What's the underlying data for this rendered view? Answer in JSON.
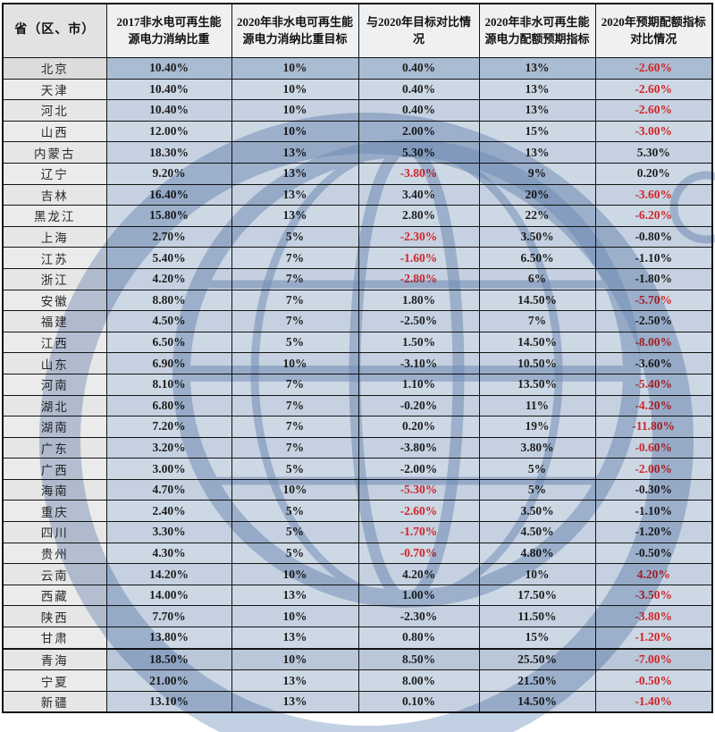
{
  "table": {
    "headers": [
      "省（区、市）",
      "2017非水电可再生能源电力消纳比重",
      "2020年非水电可再生能源电力消纳比重目标",
      "与2020年目标对比情况",
      "2020年非水可再生能源电力配额预期指标",
      "2020年预期配额指标对比情况"
    ],
    "rows": [
      {
        "name": "北京",
        "v2017": "10.40%",
        "target": "10%",
        "diff": "0.40%",
        "diff_red": false,
        "quota": "13%",
        "qdiff": "-2.60%",
        "qdiff_red": true
      },
      {
        "name": "天津",
        "v2017": "10.40%",
        "target": "10%",
        "diff": "0.40%",
        "diff_red": false,
        "quota": "13%",
        "qdiff": "-2.60%",
        "qdiff_red": true
      },
      {
        "name": "河北",
        "v2017": "10.40%",
        "target": "10%",
        "diff": "0.40%",
        "diff_red": false,
        "quota": "13%",
        "qdiff": "-2.60%",
        "qdiff_red": true
      },
      {
        "name": "山西",
        "v2017": "12.00%",
        "target": "10%",
        "diff": "2.00%",
        "diff_red": false,
        "quota": "15%",
        "qdiff": "-3.00%",
        "qdiff_red": true
      },
      {
        "name": "内蒙古",
        "v2017": "18.30%",
        "target": "13%",
        "diff": "5.30%",
        "diff_red": false,
        "quota": "13%",
        "qdiff": "5.30%",
        "qdiff_red": false
      },
      {
        "name": "辽宁",
        "v2017": "9.20%",
        "target": "13%",
        "diff": "-3.80%",
        "diff_red": true,
        "quota": "9%",
        "qdiff": "0.20%",
        "qdiff_red": false
      },
      {
        "name": "吉林",
        "v2017": "16.40%",
        "target": "13%",
        "diff": "3.40%",
        "diff_red": false,
        "quota": "20%",
        "qdiff": "-3.60%",
        "qdiff_red": true
      },
      {
        "name": "黑龙江",
        "v2017": "15.80%",
        "target": "13%",
        "diff": "2.80%",
        "diff_red": false,
        "quota": "22%",
        "qdiff": "-6.20%",
        "qdiff_red": true
      },
      {
        "name": "上海",
        "v2017": "2.70%",
        "target": "5%",
        "diff": "-2.30%",
        "diff_red": true,
        "quota": "3.50%",
        "qdiff": "-0.80%",
        "qdiff_red": false
      },
      {
        "name": "江苏",
        "v2017": "5.40%",
        "target": "7%",
        "diff": "-1.60%",
        "diff_red": true,
        "quota": "6.50%",
        "qdiff": "-1.10%",
        "qdiff_red": false
      },
      {
        "name": "浙江",
        "v2017": "4.20%",
        "target": "7%",
        "diff": "-2.80%",
        "diff_red": true,
        "quota": "6%",
        "qdiff": "-1.80%",
        "qdiff_red": false
      },
      {
        "name": "安徽",
        "v2017": "8.80%",
        "target": "7%",
        "diff": "1.80%",
        "diff_red": false,
        "quota": "14.50%",
        "qdiff": "-5.70%",
        "qdiff_red": true
      },
      {
        "name": "福建",
        "v2017": "4.50%",
        "target": "7%",
        "diff": "-2.50%",
        "diff_red": false,
        "quota": "7%",
        "qdiff": "-2.50%",
        "qdiff_red": false
      },
      {
        "name": "江西",
        "v2017": "6.50%",
        "target": "5%",
        "diff": "1.50%",
        "diff_red": false,
        "quota": "14.50%",
        "qdiff": "-8.00%",
        "qdiff_red": true
      },
      {
        "name": "山东",
        "v2017": "6.90%",
        "target": "10%",
        "diff": "-3.10%",
        "diff_red": false,
        "quota": "10.50%",
        "qdiff": "-3.60%",
        "qdiff_red": false
      },
      {
        "name": "河南",
        "v2017": "8.10%",
        "target": "7%",
        "diff": "1.10%",
        "diff_red": false,
        "quota": "13.50%",
        "qdiff": "-5.40%",
        "qdiff_red": true
      },
      {
        "name": "湖北",
        "v2017": "6.80%",
        "target": "7%",
        "diff": "-0.20%",
        "diff_red": false,
        "quota": "11%",
        "qdiff": "-4.20%",
        "qdiff_red": true
      },
      {
        "name": "湖南",
        "v2017": "7.20%",
        "target": "7%",
        "diff": "0.20%",
        "diff_red": false,
        "quota": "19%",
        "qdiff": "-11.80%",
        "qdiff_red": true
      },
      {
        "name": "广东",
        "v2017": "3.20%",
        "target": "7%",
        "diff": "-3.80%",
        "diff_red": false,
        "quota": "3.80%",
        "qdiff": "-0.60%",
        "qdiff_red": true
      },
      {
        "name": "广西",
        "v2017": "3.00%",
        "target": "5%",
        "diff": "-2.00%",
        "diff_red": false,
        "quota": "5%",
        "qdiff": "-2.00%",
        "qdiff_red": true
      },
      {
        "name": "海南",
        "v2017": "4.70%",
        "target": "10%",
        "diff": "-5.30%",
        "diff_red": true,
        "quota": "5%",
        "qdiff": "-0.30%",
        "qdiff_red": false
      },
      {
        "name": "重庆",
        "v2017": "2.40%",
        "target": "5%",
        "diff": "-2.60%",
        "diff_red": true,
        "quota": "3.50%",
        "qdiff": "-1.10%",
        "qdiff_red": false
      },
      {
        "name": "四川",
        "v2017": "3.30%",
        "target": "5%",
        "diff": "-1.70%",
        "diff_red": true,
        "quota": "4.50%",
        "qdiff": "-1.20%",
        "qdiff_red": false
      },
      {
        "name": "贵州",
        "v2017": "4.30%",
        "target": "5%",
        "diff": "-0.70%",
        "diff_red": true,
        "quota": "4.80%",
        "qdiff": "-0.50%",
        "qdiff_red": false
      },
      {
        "name": "云南",
        "v2017": "14.20%",
        "target": "10%",
        "diff": "4.20%",
        "diff_red": false,
        "quota": "10%",
        "qdiff": "4.20%",
        "qdiff_red": true
      },
      {
        "name": "西藏",
        "v2017": "14.00%",
        "target": "13%",
        "diff": "1.00%",
        "diff_red": false,
        "quota": "17.50%",
        "qdiff": "-3.50%",
        "qdiff_red": true
      },
      {
        "name": "陕西",
        "v2017": "7.70%",
        "target": "10%",
        "diff": "-2.30%",
        "diff_red": false,
        "quota": "11.50%",
        "qdiff": "-3.80%",
        "qdiff_red": true
      },
      {
        "name": "甘肃",
        "v2017": "13.80%",
        "target": "13%",
        "diff": "0.80%",
        "diff_red": false,
        "quota": "15%",
        "qdiff": "-1.20%",
        "qdiff_red": true
      },
      {
        "name": "青海",
        "v2017": "18.50%",
        "target": "10%",
        "diff": "8.50%",
        "diff_red": false,
        "quota": "25.50%",
        "qdiff": "-7.00%",
        "qdiff_red": true
      },
      {
        "name": "宁夏",
        "v2017": "21.00%",
        "target": "13%",
        "diff": "8.00%",
        "diff_red": false,
        "quota": "21.50%",
        "qdiff": "-0.50%",
        "qdiff_red": true
      },
      {
        "name": "新疆",
        "v2017": "13.10%",
        "target": "13%",
        "diff": "0.10%",
        "diff_red": false,
        "quota": "14.50%",
        "qdiff": "-1.40%",
        "qdiff_red": true
      }
    ]
  },
  "colors": {
    "negative_red": "#d02529",
    "text_dark": "#1d1d1d",
    "row_blue": "#c5d1e0",
    "first_row_blue": "#a9bcd2",
    "name_col_gray": "#e6e6e6",
    "watermark_blue": "#8fa9cc"
  }
}
